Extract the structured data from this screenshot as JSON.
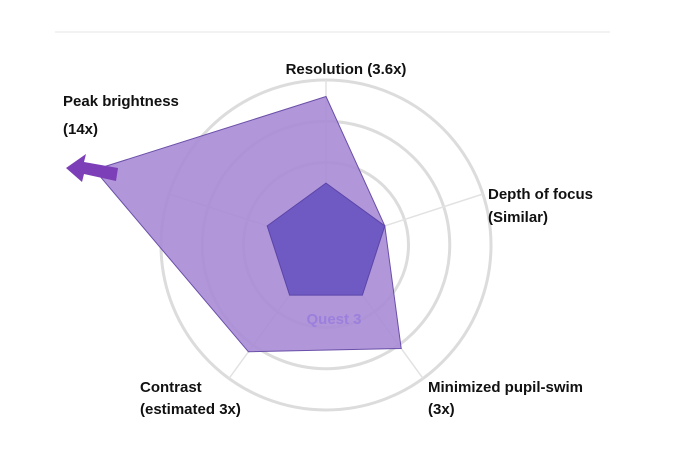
{
  "chart_data": {
    "type": "radar",
    "axes": [
      [
        "Resolution (3.6x)"
      ],
      [
        "Depth of focus",
        "(Similar)"
      ],
      [
        "Minimized pupil-swim",
        "(3x)"
      ],
      [
        "Contrast",
        "(estimated 3x)"
      ],
      [
        "Peak brightness",
        "(14x)"
      ]
    ],
    "rlim": [
      0,
      4
    ],
    "rticks": [
      1,
      2,
      3,
      4
    ],
    "series": [
      {
        "color": "#a98bd6",
        "values": [
          3.6,
          1.5,
          3.1,
          3.2,
          5.9
        ]
      },
      {
        "name": "Quest 3",
        "color": "#6b55c2",
        "values": [
          1.5,
          1.5,
          1.5,
          1.5,
          1.5
        ]
      }
    ]
  }
}
